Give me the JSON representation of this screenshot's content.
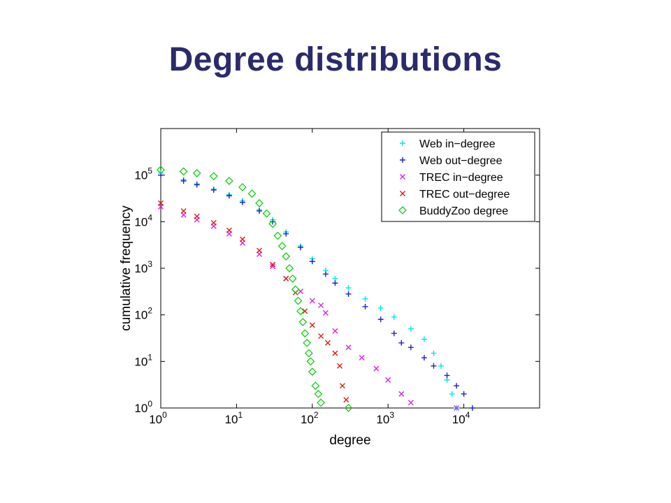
{
  "slide": {
    "title": "Degree distributions"
  },
  "colors": {
    "title": "#2b2b6b",
    "web_in": "#00e8e8",
    "web_out": "#2020c8",
    "trec_in": "#e020e0",
    "trec_out": "#e01818",
    "buddyzoo": "#10d010"
  },
  "chart_data": {
    "type": "scatter",
    "xlabel": "degree",
    "ylabel": "cumulative frequency",
    "xscale": "log",
    "yscale": "log",
    "xlim": [
      1,
      100000
    ],
    "ylim": [
      1,
      1000000
    ],
    "xticks": [
      1,
      10,
      100,
      1000,
      10000
    ],
    "yticks": [
      1,
      10,
      100,
      1000,
      10000,
      100000
    ],
    "legend_position": "top-right",
    "grid": false,
    "series": [
      {
        "name": "Web in−degree",
        "marker": "plus",
        "color": "#00e8e8",
        "points": [
          [
            1,
            110000
          ],
          [
            2,
            80000
          ],
          [
            3,
            65000
          ],
          [
            5,
            50000
          ],
          [
            8,
            38000
          ],
          [
            12,
            28000
          ],
          [
            20,
            18000
          ],
          [
            30,
            11000
          ],
          [
            45,
            6000
          ],
          [
            70,
            3000
          ],
          [
            100,
            1600
          ],
          [
            150,
            900
          ],
          [
            200,
            600
          ],
          [
            300,
            380
          ],
          [
            500,
            220
          ],
          [
            800,
            140
          ],
          [
            1200,
            90
          ],
          [
            2000,
            50
          ],
          [
            3000,
            30
          ],
          [
            4000,
            15
          ],
          [
            5000,
            8
          ],
          [
            6000,
            4
          ],
          [
            7000,
            2
          ],
          [
            8000,
            1
          ]
        ]
      },
      {
        "name": "Web out−degree",
        "marker": "plus",
        "color": "#2020c8",
        "points": [
          [
            1,
            100000
          ],
          [
            2,
            75000
          ],
          [
            3,
            62000
          ],
          [
            5,
            48000
          ],
          [
            8,
            36000
          ],
          [
            12,
            26000
          ],
          [
            20,
            17000
          ],
          [
            30,
            10000
          ],
          [
            45,
            5500
          ],
          [
            70,
            2800
          ],
          [
            100,
            1400
          ],
          [
            150,
            750
          ],
          [
            200,
            480
          ],
          [
            300,
            280
          ],
          [
            500,
            150
          ],
          [
            800,
            80
          ],
          [
            1200,
            40
          ],
          [
            1500,
            25
          ],
          [
            2000,
            20
          ],
          [
            3000,
            12
          ],
          [
            4000,
            8
          ],
          [
            6000,
            5
          ],
          [
            8000,
            3
          ],
          [
            10000,
            2
          ],
          [
            13000,
            1
          ]
        ]
      },
      {
        "name": "TREC in−degree",
        "marker": "x",
        "color": "#e020e0",
        "points": [
          [
            1,
            21000
          ],
          [
            2,
            14000
          ],
          [
            3,
            11000
          ],
          [
            5,
            8000
          ],
          [
            8,
            5500
          ],
          [
            12,
            3500
          ],
          [
            20,
            2000
          ],
          [
            30,
            1100
          ],
          [
            45,
            600
          ],
          [
            70,
            320
          ],
          [
            100,
            200
          ],
          [
            130,
            160
          ],
          [
            150,
            110
          ],
          [
            200,
            45
          ],
          [
            300,
            20
          ],
          [
            450,
            12
          ],
          [
            700,
            7
          ],
          [
            1000,
            4
          ],
          [
            1500,
            2
          ],
          [
            2000,
            1.3
          ],
          [
            8000,
            1
          ]
        ]
      },
      {
        "name": "TREC out−degree",
        "marker": "x",
        "color": "#e01818",
        "points": [
          [
            1,
            25000
          ],
          [
            2,
            17000
          ],
          [
            3,
            13000
          ],
          [
            5,
            9500
          ],
          [
            8,
            6500
          ],
          [
            12,
            4200
          ],
          [
            20,
            2400
          ],
          [
            30,
            1200
          ],
          [
            45,
            600
          ],
          [
            60,
            300
          ],
          [
            80,
            120
          ],
          [
            100,
            60
          ],
          [
            130,
            35
          ],
          [
            160,
            25
          ],
          [
            200,
            15
          ],
          [
            230,
            8
          ],
          [
            250,
            3
          ],
          [
            280,
            1.5
          ]
        ]
      },
      {
        "name": "BuddyZoo degree",
        "marker": "diamond",
        "color": "#10d010",
        "points": [
          [
            1,
            130000
          ],
          [
            2,
            120000
          ],
          [
            3,
            110000
          ],
          [
            5,
            95000
          ],
          [
            8,
            75000
          ],
          [
            12,
            55000
          ],
          [
            16,
            40000
          ],
          [
            20,
            25000
          ],
          [
            25,
            15000
          ],
          [
            30,
            9000
          ],
          [
            35,
            5000
          ],
          [
            40,
            3000
          ],
          [
            45,
            1800
          ],
          [
            50,
            1000
          ],
          [
            55,
            600
          ],
          [
            60,
            350
          ],
          [
            65,
            200
          ],
          [
            70,
            120
          ],
          [
            75,
            70
          ],
          [
            80,
            40
          ],
          [
            85,
            25
          ],
          [
            90,
            15
          ],
          [
            95,
            10
          ],
          [
            100,
            6
          ],
          [
            110,
            3
          ],
          [
            120,
            2
          ],
          [
            130,
            1.3
          ],
          [
            300,
            1
          ]
        ]
      }
    ]
  }
}
